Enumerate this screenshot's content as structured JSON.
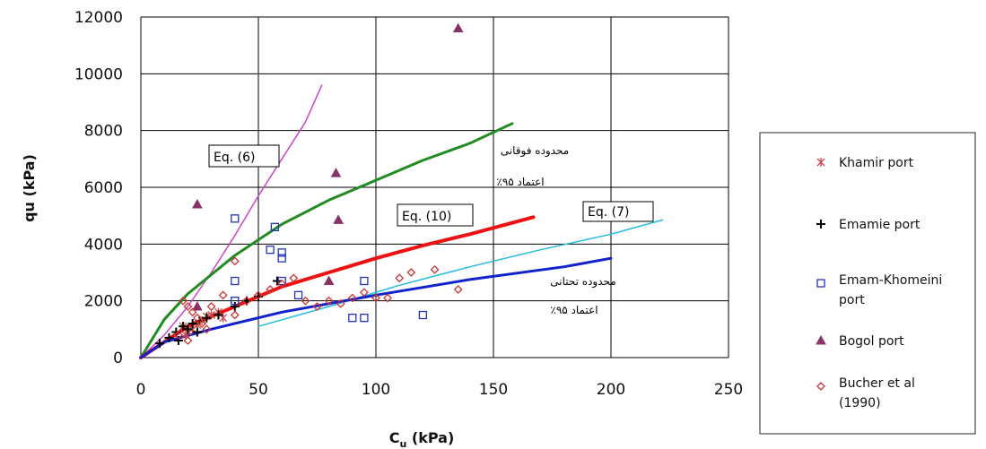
{
  "chart_data": {
    "type": "scatter",
    "xlabel": "C_u (kPa)",
    "xlabel_main": "C",
    "xlabel_sub": "u",
    "xlabel_rest": " (kPa)",
    "ylabel": "qu (kPa)",
    "xlim": [
      0,
      250
    ],
    "ylim": [
      0,
      12000
    ],
    "xticks": [
      0,
      50,
      100,
      150,
      200,
      250
    ],
    "yticks": [
      0,
      2000,
      4000,
      6000,
      8000,
      10000,
      12000
    ],
    "xtick_labels": [
      "0",
      "50",
      "100",
      "150",
      "200",
      "250"
    ],
    "ytick_labels": [
      "0",
      "2000",
      "4000",
      "6000",
      "8000",
      "10000",
      "12000"
    ],
    "grid": "horizontal and vertical major gridlines",
    "legend_position": "right",
    "curves": [
      {
        "name": "Eq. (6)",
        "color": "#cc44cc",
        "width": 1.5,
        "points": [
          [
            0,
            0
          ],
          [
            10,
            800
          ],
          [
            20,
            1800
          ],
          [
            30,
            3000
          ],
          [
            40,
            4300
          ],
          [
            50,
            5700
          ],
          [
            60,
            7000
          ],
          [
            70,
            8300
          ],
          [
            77,
            9600
          ]
        ]
      },
      {
        "name": "upper-bound",
        "color": "#228B22",
        "width": 3,
        "points": [
          [
            0,
            0
          ],
          [
            10,
            1350
          ],
          [
            20,
            2250
          ],
          [
            40,
            3600
          ],
          [
            60,
            4700
          ],
          [
            80,
            5550
          ],
          [
            100,
            6250
          ],
          [
            120,
            6950
          ],
          [
            140,
            7550
          ],
          [
            158,
            8250
          ]
        ]
      },
      {
        "name": "Eq. (10)",
        "color": "#ee1111",
        "width": 4,
        "points": [
          [
            0,
            0
          ],
          [
            20,
            1100
          ],
          [
            40,
            1800
          ],
          [
            60,
            2500
          ],
          [
            80,
            3000
          ],
          [
            100,
            3500
          ],
          [
            120,
            3950
          ],
          [
            140,
            4350
          ],
          [
            167,
            4950
          ]
        ]
      },
      {
        "name": "Eq. (7)",
        "color": "#22bbdd",
        "width": 1.5,
        "points": [
          [
            50,
            1100
          ],
          [
            80,
            1800
          ],
          [
            110,
            2550
          ],
          [
            140,
            3200
          ],
          [
            170,
            3800
          ],
          [
            200,
            4350
          ],
          [
            222,
            4850
          ]
        ]
      },
      {
        "name": "lower-bound",
        "color": "#1122cc",
        "width": 3,
        "points": [
          [
            0,
            0
          ],
          [
            10,
            550
          ],
          [
            30,
            1000
          ],
          [
            60,
            1600
          ],
          [
            100,
            2200
          ],
          [
            140,
            2750
          ],
          [
            180,
            3200
          ],
          [
            200,
            3500
          ]
        ]
      }
    ],
    "series": [
      {
        "name": "Khamir port",
        "marker": "asterisk",
        "color": "#cc4444",
        "points": [
          [
            18,
            1100
          ],
          [
            20,
            900
          ],
          [
            22,
            1000
          ],
          [
            24,
            1150
          ],
          [
            26,
            1300
          ],
          [
            28,
            1450
          ],
          [
            30,
            1500
          ],
          [
            35,
            1400
          ],
          [
            33,
            1600
          ],
          [
            19,
            800
          ]
        ]
      },
      {
        "name": "Emamie port",
        "marker": "plus",
        "color": "#000000",
        "points": [
          [
            8,
            500
          ],
          [
            12,
            700
          ],
          [
            15,
            900
          ],
          [
            18,
            1100
          ],
          [
            20,
            1000
          ],
          [
            22,
            1200
          ],
          [
            25,
            1300
          ],
          [
            28,
            1400
          ],
          [
            33,
            1500
          ],
          [
            40,
            1800
          ],
          [
            45,
            2000
          ],
          [
            50,
            2150
          ],
          [
            58,
            2700
          ],
          [
            24,
            900
          ],
          [
            16,
            600
          ]
        ]
      },
      {
        "name": "Emam-Khomeini port",
        "marker": "square",
        "color": "#2233bb",
        "points": [
          [
            40,
            4900
          ],
          [
            40,
            2700
          ],
          [
            40,
            2000
          ],
          [
            55,
            3800
          ],
          [
            57,
            4600
          ],
          [
            60,
            3700
          ],
          [
            60,
            3500
          ],
          [
            60,
            2700
          ],
          [
            67,
            2200
          ],
          [
            90,
            1400
          ],
          [
            95,
            1400
          ],
          [
            95,
            2700
          ],
          [
            120,
            1500
          ]
        ]
      },
      {
        "name": "Bogol port",
        "marker": "triangle",
        "color": "#883366",
        "points": [
          [
            24,
            5400
          ],
          [
            83,
            6500
          ],
          [
            84,
            4850
          ],
          [
            80,
            2700
          ],
          [
            24,
            1800
          ],
          [
            135,
            11600
          ]
        ]
      },
      {
        "name": "Bucher et al (1990)",
        "marker": "diamond",
        "color": "#cc3333",
        "points": [
          [
            18,
            2000
          ],
          [
            20,
            1800
          ],
          [
            22,
            1600
          ],
          [
            24,
            1400
          ],
          [
            26,
            1200
          ],
          [
            28,
            1000
          ],
          [
            30,
            1800
          ],
          [
            35,
            2200
          ],
          [
            40,
            3400
          ],
          [
            40,
            1500
          ],
          [
            45,
            2000
          ],
          [
            50,
            2200
          ],
          [
            55,
            2400
          ],
          [
            60,
            2600
          ],
          [
            65,
            2800
          ],
          [
            70,
            2000
          ],
          [
            75,
            1800
          ],
          [
            80,
            2000
          ],
          [
            85,
            1900
          ],
          [
            90,
            2100
          ],
          [
            95,
            2300
          ],
          [
            100,
            2100
          ],
          [
            105,
            2100
          ],
          [
            110,
            2800
          ],
          [
            115,
            3000
          ],
          [
            125,
            3100
          ],
          [
            135,
            2400
          ],
          [
            20,
            600
          ],
          [
            16,
            800
          ]
        ]
      }
    ],
    "annotations": [
      {
        "id": "eq6",
        "text": "Eq. (6)",
        "boxed": true
      },
      {
        "id": "eq10",
        "text": "Eq. (10)",
        "boxed": true
      },
      {
        "id": "eq7",
        "text": "Eq. (7)",
        "boxed": true
      },
      {
        "id": "upper1",
        "text": "محدوده فوقانی",
        "boxed": false
      },
      {
        "id": "upper2",
        "text": "اعتماد ۹۵٪",
        "boxed": false
      },
      {
        "id": "lower1",
        "text": "محدوده تحتانی",
        "boxed": false
      },
      {
        "id": "lower2",
        "text": "اعتماد ۹۵٪",
        "boxed": false
      }
    ],
    "legend": [
      {
        "label": "Khamir port",
        "marker": "asterisk",
        "color": "#cc4444"
      },
      {
        "label": "Emamie port",
        "marker": "plus",
        "color": "#000000"
      },
      {
        "label_lines": [
          "Emam-Khomeini",
          "port"
        ],
        "marker": "square",
        "color": "#2233bb"
      },
      {
        "label": "Bogol port",
        "marker": "triangle",
        "color": "#883366"
      },
      {
        "label_lines": [
          "Bucher et al",
          "(1990)"
        ],
        "marker": "diamond",
        "color": "#cc3333"
      }
    ]
  }
}
